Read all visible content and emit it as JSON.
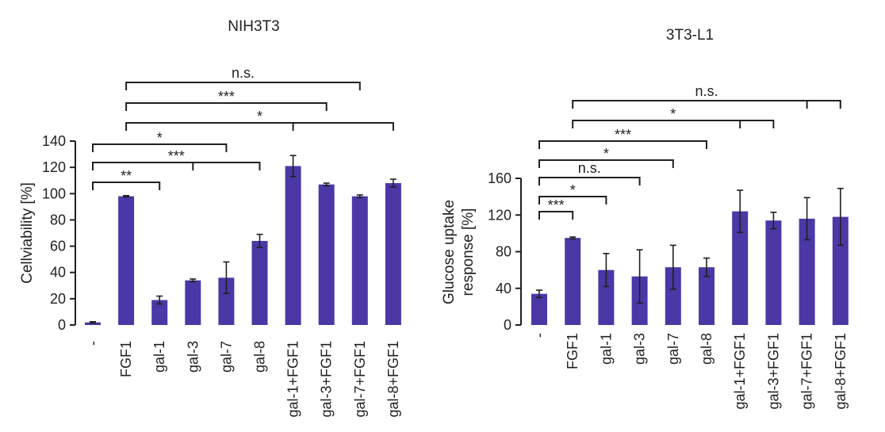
{
  "chart_data": [
    {
      "type": "bar",
      "title": "NIH3T3",
      "ylabel": "Cellviability [%]",
      "ylim": [
        0,
        140
      ],
      "yticks": [
        0,
        20,
        40,
        60,
        80,
        100,
        120,
        140
      ],
      "categories": [
        "-",
        "FGF1",
        "gal-1",
        "gal-3",
        "gal-7",
        "gal-8",
        "gal-1+FGF1",
        "gal-3+FGF1",
        "gal-7+FGF1",
        "gal-8+FGF1"
      ],
      "values": [
        2,
        98,
        19,
        34,
        36,
        64,
        121,
        107,
        98,
        108
      ],
      "errors": [
        0.5,
        0.5,
        3,
        1,
        12,
        5,
        8,
        1,
        1,
        3
      ],
      "color": "#4b38a6",
      "significance": [
        {
          "from": 0,
          "to": 2,
          "label": "**"
        },
        {
          "from": 0,
          "to": 5,
          "mid": 3,
          "label": "***"
        },
        {
          "from": 0,
          "to": 4,
          "label": "*"
        },
        {
          "from": 1,
          "to": 9,
          "mid": 6,
          "label": "*"
        },
        {
          "from": 1,
          "to": 7,
          "label": "***"
        },
        {
          "from": 1,
          "to": 8,
          "label": "n.s."
        }
      ]
    },
    {
      "type": "bar",
      "title": "3T3-L1",
      "ylabel": "Glucose uptake response [%]",
      "ylabel_lines": [
        "Glucose uptake",
        "response [%]"
      ],
      "ylim": [
        0,
        160
      ],
      "yticks": [
        0,
        40,
        80,
        120,
        160
      ],
      "categories": [
        "-",
        "FGF1",
        "gal-1",
        "gal-3",
        "gal-7",
        "gal-8",
        "gal-1+FGF1",
        "gal-3+FGF1",
        "gal-7+FGF1",
        "gal-8+FGF1"
      ],
      "values": [
        34,
        95,
        60,
        53,
        63,
        63,
        124,
        114,
        116,
        118
      ],
      "errors": [
        4,
        1,
        18,
        29,
        24,
        10,
        23,
        9,
        23,
        31
      ],
      "color": "#4b38a6",
      "significance": [
        {
          "from": 0,
          "to": 1,
          "label": "***"
        },
        {
          "from": 0,
          "to": 2,
          "label": "*"
        },
        {
          "from": 0,
          "to": 3,
          "label": "n.s."
        },
        {
          "from": 0,
          "to": 4,
          "label": "*"
        },
        {
          "from": 0,
          "to": 5,
          "label": "***"
        },
        {
          "from": 1,
          "to": 7,
          "mid": 6,
          "label": "*"
        },
        {
          "from": 1,
          "to": 9,
          "mid": 8,
          "label": "n.s."
        }
      ]
    }
  ]
}
